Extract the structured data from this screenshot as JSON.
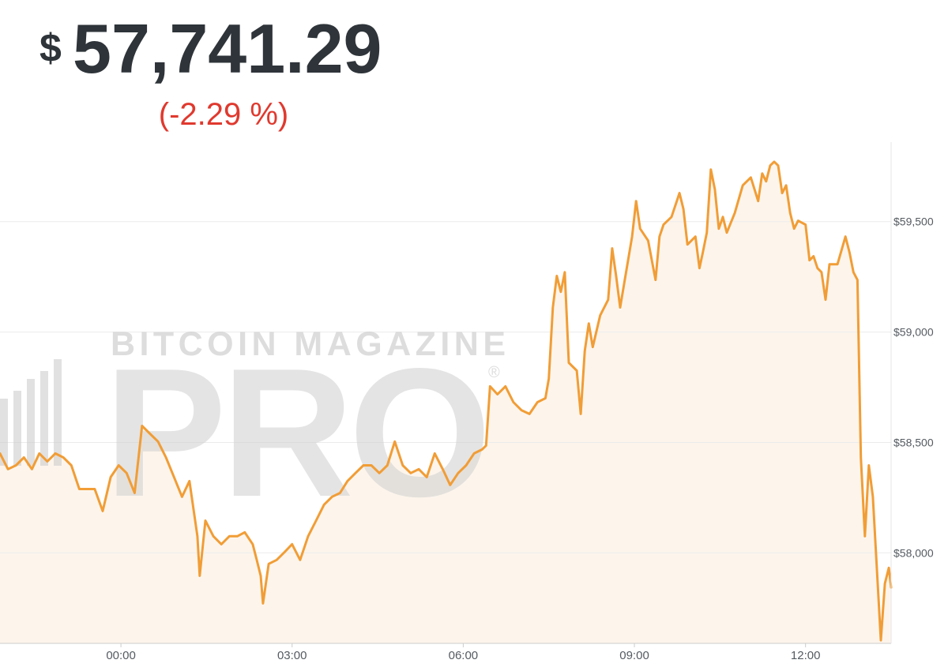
{
  "header": {
    "currency": "$",
    "price": "57,741.29",
    "change": "(-2.29 %)"
  },
  "watermark": {
    "line1": "BITCOIN MAGAZINE",
    "line2": "PRO",
    "mark": "®"
  },
  "chart_data": {
    "type": "line",
    "color": "#f19d36",
    "fill": "#fdf5ec",
    "grid": true,
    "xlim": [
      -2.12,
      13.5
    ],
    "xticks": [
      {
        "value": 0,
        "label": "00:00"
      },
      {
        "value": 3,
        "label": "03:00"
      },
      {
        "value": 6,
        "label": "06:00"
      },
      {
        "value": 9,
        "label": "09:00"
      },
      {
        "value": 12,
        "label": "12:00"
      }
    ],
    "ylim": [
      57590,
      59860
    ],
    "yticks": [
      {
        "value": 58000,
        "label": "$58,000"
      },
      {
        "value": 58500,
        "label": "$58,500"
      },
      {
        "value": 59000,
        "label": "$59,000"
      },
      {
        "value": 59500,
        "label": "$59,500"
      }
    ],
    "x": [
      -2.12,
      -1.98,
      -1.84,
      -1.7,
      -1.56,
      -1.43,
      -1.29,
      -1.15,
      -1.01,
      -0.87,
      -0.73,
      -0.6,
      -0.46,
      -0.32,
      -0.18,
      -0.04,
      0.1,
      0.24,
      0.37,
      0.51,
      0.65,
      0.79,
      0.93,
      1.07,
      1.2,
      1.34,
      1.38,
      1.48,
      1.62,
      1.76,
      1.9,
      2.04,
      2.17,
      2.31,
      2.38,
      2.45,
      2.49,
      2.59,
      2.73,
      2.87,
      3.0,
      3.14,
      3.28,
      3.42,
      3.56,
      3.7,
      3.84,
      3.97,
      4.11,
      4.25,
      4.39,
      4.53,
      4.67,
      4.8,
      4.94,
      5.08,
      5.22,
      5.36,
      5.5,
      5.64,
      5.77,
      5.91,
      6.05,
      6.19,
      6.33,
      6.4,
      6.47,
      6.6,
      6.74,
      6.88,
      7.02,
      7.16,
      7.3,
      7.44,
      7.5,
      7.57,
      7.64,
      7.71,
      7.78,
      7.85,
      7.99,
      8.06,
      8.13,
      8.2,
      8.27,
      8.4,
      8.54,
      8.61,
      8.68,
      8.75,
      8.82,
      8.96,
      9.03,
      9.1,
      9.24,
      9.37,
      9.44,
      9.51,
      9.65,
      9.79,
      9.86,
      9.93,
      10.07,
      10.14,
      10.2,
      10.27,
      10.34,
      10.41,
      10.48,
      10.55,
      10.62,
      10.76,
      10.9,
      11.04,
      11.17,
      11.24,
      11.31,
      11.38,
      11.45,
      11.52,
      11.59,
      11.66,
      11.73,
      11.8,
      11.87,
      12.0,
      12.07,
      12.14,
      12.21,
      12.28,
      12.35,
      12.42,
      12.56,
      12.7,
      12.77,
      12.84,
      12.91,
      12.97,
      13.04,
      13.11,
      13.18,
      13.25,
      13.32,
      13.39,
      13.46,
      13.5
    ],
    "values": [
      58450,
      58379,
      58396,
      58432,
      58379,
      58450,
      58414,
      58450,
      58432,
      58396,
      58289,
      58289,
      58289,
      58189,
      58343,
      58396,
      58361,
      58271,
      58575,
      58539,
      58504,
      58432,
      58343,
      58254,
      58325,
      58075,
      57896,
      58146,
      58075,
      58039,
      58075,
      58075,
      58093,
      58039,
      57968,
      57896,
      57771,
      57950,
      57968,
      58004,
      58039,
      57968,
      58075,
      58146,
      58218,
      58254,
      58271,
      58325,
      58361,
      58396,
      58396,
      58361,
      58396,
      58504,
      58396,
      58361,
      58379,
      58343,
      58450,
      58379,
      58307,
      58361,
      58396,
      58450,
      58468,
      58486,
      58754,
      58718,
      58754,
      58682,
      58646,
      58629,
      58682,
      58700,
      58789,
      59111,
      59254,
      59182,
      59271,
      58861,
      58825,
      58629,
      58914,
      59039,
      58932,
      59075,
      59146,
      59379,
      59254,
      59111,
      59218,
      59432,
      59593,
      59468,
      59414,
      59236,
      59432,
      59486,
      59521,
      59629,
      59557,
      59396,
      59432,
      59289,
      59361,
      59450,
      59736,
      59646,
      59468,
      59521,
      59450,
      59539,
      59664,
      59700,
      59593,
      59718,
      59682,
      59754,
      59771,
      59754,
      59629,
      59664,
      59539,
      59468,
      59504,
      59486,
      59325,
      59343,
      59289,
      59271,
      59146,
      59307,
      59307,
      59432,
      59361,
      59271,
      59236,
      58432,
      58075,
      58396,
      58254,
      57932,
      57604,
      57861,
      57932,
      57843
    ]
  }
}
